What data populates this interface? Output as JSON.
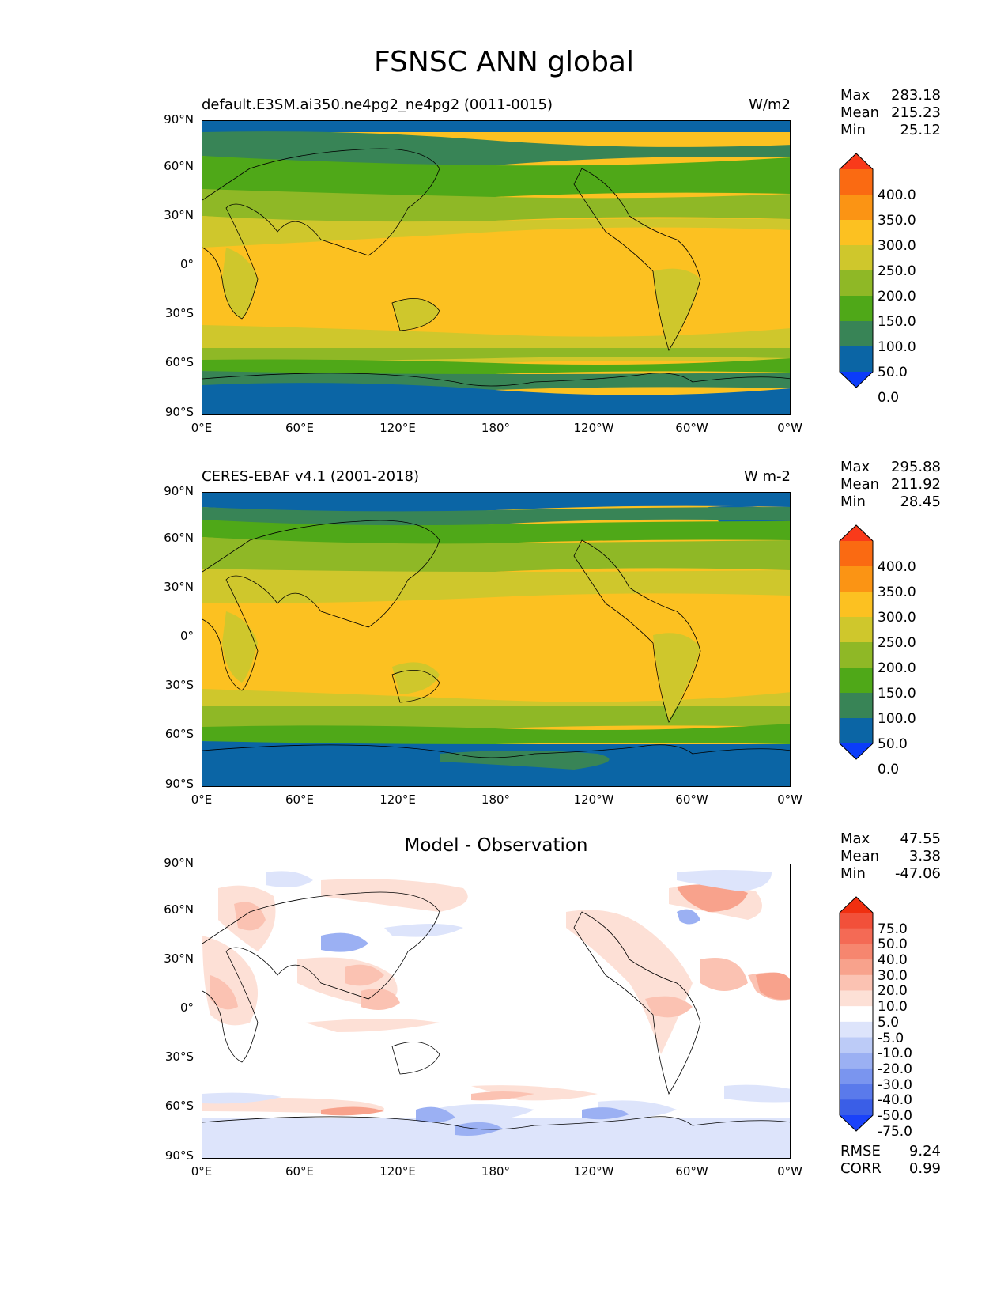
{
  "figure": {
    "title": "FSNSC ANN global"
  },
  "axes": {
    "y_ticks": [
      "90°N",
      "60°N",
      "30°N",
      "0°",
      "30°S",
      "60°S",
      "90°S"
    ],
    "x_ticks": [
      "0°E",
      "60°E",
      "120°E",
      "180°",
      "120°W",
      "60°W",
      "0°W"
    ]
  },
  "panels": [
    {
      "title_left": "default.E3SM.ai350.ne4pg2_ne4pg2 (0011-0015)",
      "units": "W/m2",
      "stats": [
        {
          "label": "Max",
          "value": "283.18"
        },
        {
          "label": "Mean",
          "value": "215.23"
        },
        {
          "label": "Min",
          "value": "25.12"
        }
      ],
      "colorbar": {
        "levels": [
          "400.0",
          "350.0",
          "300.0",
          "250.0",
          "200.0",
          "150.0",
          "100.0",
          "50.0",
          "0.0"
        ],
        "colors": [
          "#f93a1a",
          "#fa6a12",
          "#fb9414",
          "#fcc121",
          "#cfc72c",
          "#8fb826",
          "#4fa818",
          "#388456",
          "#0b65a5",
          "#0b3cfa"
        ]
      }
    },
    {
      "title_left": "CERES-EBAF v4.1 (2001-2018)",
      "units": "W m-2",
      "stats": [
        {
          "label": "Max",
          "value": "295.88"
        },
        {
          "label": "Mean",
          "value": "211.92"
        },
        {
          "label": "Min",
          "value": "28.45"
        }
      ],
      "colorbar": {
        "levels": [
          "400.0",
          "350.0",
          "300.0",
          "250.0",
          "200.0",
          "150.0",
          "100.0",
          "50.0",
          "0.0"
        ],
        "colors": [
          "#f93a1a",
          "#fa6a12",
          "#fb9414",
          "#fcc121",
          "#cfc72c",
          "#8fb826",
          "#4fa818",
          "#388456",
          "#0b65a5",
          "#0b3cfa"
        ]
      }
    },
    {
      "title_center": "Model - Observation",
      "stats": [
        {
          "label": "Max",
          "value": "47.55"
        },
        {
          "label": "Mean",
          "value": "3.38"
        },
        {
          "label": "Min",
          "value": "-47.06"
        }
      ],
      "colorbar": {
        "levels": [
          "75.0",
          "50.0",
          "40.0",
          "30.0",
          "20.0",
          "10.0",
          "5.0",
          "-5.0",
          "-10.0",
          "-20.0",
          "-30.0",
          "-40.0",
          "-50.0",
          "-75.0"
        ],
        "colors": [
          "#f02f10",
          "#f2503a",
          "#f46a55",
          "#f6866f",
          "#f8a28c",
          "#fbc2b2",
          "#fde0d6",
          "#ffffff",
          "#dde4fb",
          "#bccbf7",
          "#9bb0f3",
          "#7a95ef",
          "#5a7aeb",
          "#3a5ee7",
          "#1a42fa"
        ]
      },
      "bottom_stats": [
        {
          "label": "RMSE",
          "value": "9.24"
        },
        {
          "label": "CORR",
          "value": "0.99"
        }
      ]
    }
  ]
}
